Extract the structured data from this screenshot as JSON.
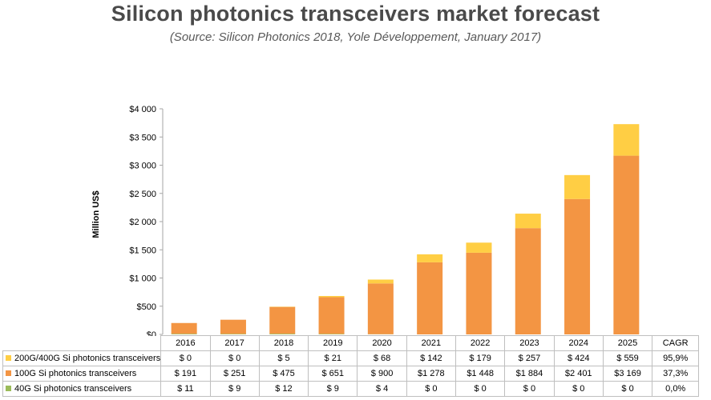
{
  "title": "Silicon photonics transceivers market forecast",
  "subtitle": "(Source: Silicon Photonics 2018, Yole Développement, January 2017)",
  "chart_data": {
    "type": "bar",
    "stacked": true,
    "title": "Silicon photonics transceivers market forecast",
    "subtitle": "(Source: Silicon Photonics 2018, Yole Développement, January 2017)",
    "xlabel": "",
    "ylabel": "Million US$",
    "ylim": [
      0,
      4000
    ],
    "yticks": [
      0,
      500,
      1000,
      1500,
      2000,
      2500,
      3000,
      3500,
      4000
    ],
    "ytick_labels": [
      "$0",
      "$500",
      "$1 000",
      "$1 500",
      "$2 000",
      "$2 500",
      "$3 000",
      "$3 500",
      "$4 000"
    ],
    "categories": [
      "2016",
      "2017",
      "2018",
      "2019",
      "2020",
      "2021",
      "2022",
      "2023",
      "2024",
      "2025"
    ],
    "extra_column_header": "CAGR",
    "grid": false,
    "legend_placement": "data table below chart",
    "series": [
      {
        "name": "40G Si photonics transceivers",
        "color": "#9bbb59",
        "values": [
          11,
          9,
          12,
          9,
          4,
          0,
          0,
          0,
          0,
          0
        ],
        "value_labels": [
          "$ 11",
          "$ 9",
          "$ 12",
          "$ 9",
          "$ 4",
          "$ 0",
          "$ 0",
          "$ 0",
          "$ 0",
          "$ 0"
        ],
        "cagr": "0,0%"
      },
      {
        "name": "100G Si photonics transceivers",
        "color": "#f39543",
        "values": [
          191,
          251,
          475,
          651,
          900,
          1278,
          1448,
          1884,
          2401,
          3169
        ],
        "value_labels": [
          "$ 191",
          "$ 251",
          "$ 475",
          "$ 651",
          "$ 900",
          "$1 278",
          "$1 448",
          "$1 884",
          "$2 401",
          "$3 169"
        ],
        "cagr": "37,3%"
      },
      {
        "name": "200G/400G Si photonics transceivers",
        "color": "#ffce44",
        "values": [
          0,
          0,
          5,
          21,
          68,
          142,
          179,
          257,
          424,
          559
        ],
        "value_labels": [
          "$ 0",
          "$ 0",
          "$ 5",
          "$ 21",
          "$ 68",
          "$ 142",
          "$ 179",
          "$ 257",
          "$ 424",
          "$ 559"
        ],
        "cagr": "95,9%"
      }
    ],
    "table_row_order": [
      2,
      1,
      0
    ]
  }
}
